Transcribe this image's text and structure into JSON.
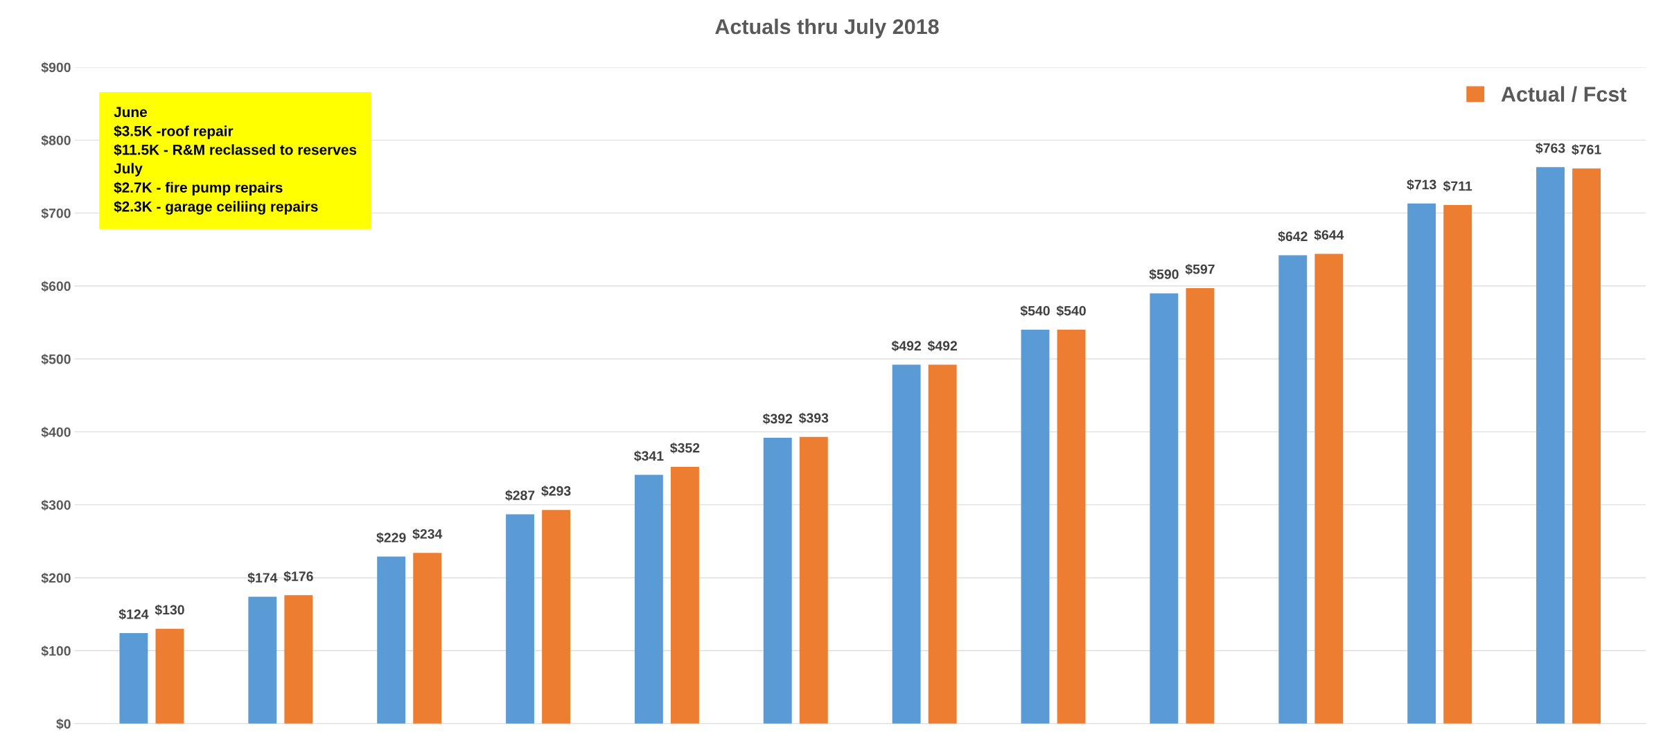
{
  "chart_data": {
    "type": "bar",
    "title": "Actuals thru July 2018",
    "categories": [
      null,
      null,
      null,
      null,
      null,
      null,
      null,
      null,
      null,
      null,
      null,
      null
    ],
    "series": [
      {
        "color": "#5b9bd5",
        "values": [
          124,
          174,
          229,
          287,
          341,
          392,
          492,
          540,
          590,
          642,
          713,
          763
        ],
        "value_labels": [
          "$124",
          "$174",
          "$229",
          "$287",
          "$341",
          "$392",
          "$492",
          "$540",
          "$590",
          "$642",
          "$713",
          "$763"
        ]
      },
      {
        "name": "Actual / Fcst",
        "color": "#ed7d31",
        "values": [
          130,
          176,
          234,
          293,
          352,
          393,
          492,
          540,
          597,
          644,
          711,
          761
        ],
        "value_labels": [
          "$130",
          "$176",
          "$234",
          "$293",
          "$352",
          "$393",
          "$492",
          "$540",
          "$597",
          "$644",
          "$711",
          "$761"
        ]
      }
    ],
    "ylim": [
      0,
      900
    ],
    "yticks": [
      {
        "value": 0,
        "label": "$0"
      },
      {
        "value": 100,
        "label": "$100"
      },
      {
        "value": 200,
        "label": "$200"
      },
      {
        "value": 300,
        "label": "$300"
      },
      {
        "value": 400,
        "label": "$400"
      },
      {
        "value": 500,
        "label": "$500"
      },
      {
        "value": 600,
        "label": "$600"
      },
      {
        "value": 700,
        "label": "$700"
      },
      {
        "value": 800,
        "label": "$800"
      },
      {
        "value": 900,
        "label": "$900"
      }
    ],
    "grid": "y",
    "legend": "top right",
    "annotations": [
      "June\n$3.5K -roof repair\n$11.5K - R&M reclassed to reserves\nJuly\n$2.7K - fire pump repairs\n$2.3K - garage ceiliing repairs"
    ]
  }
}
